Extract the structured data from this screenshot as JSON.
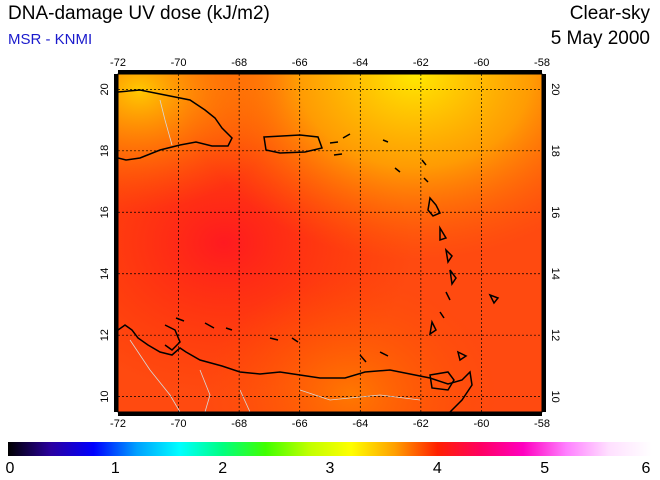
{
  "header": {
    "title": "DNA-damage UV dose (kJ/m2)",
    "source": "MSR - KNMI",
    "sky": "Clear-sky",
    "date": "5 May 2000"
  },
  "map": {
    "lon_range": [
      -72,
      -58
    ],
    "lat_range": [
      9.5,
      20.5
    ],
    "lon_ticks": [
      -72,
      -70,
      -68,
      -66,
      -64,
      -62,
      -60,
      -58
    ],
    "lat_ticks": [
      10,
      12,
      14,
      16,
      18,
      20
    ],
    "grid": true,
    "land_outline_color": "#000000",
    "border_color": "#cccccc"
  },
  "colorbar": {
    "min": 0,
    "max": 6,
    "ticks": [
      "0",
      "1",
      "2",
      "3",
      "4",
      "5",
      "6"
    ],
    "stops": [
      "#000000",
      "#2a00a0",
      "#0000ff",
      "#00a0ff",
      "#00ffff",
      "#00ff80",
      "#40ff00",
      "#c0ff00",
      "#ffff00",
      "#ffa000",
      "#ff2000",
      "#ff0060",
      "#ff00c0",
      "#ff80ff",
      "#ffe0ff",
      "#ffffff"
    ]
  }
}
